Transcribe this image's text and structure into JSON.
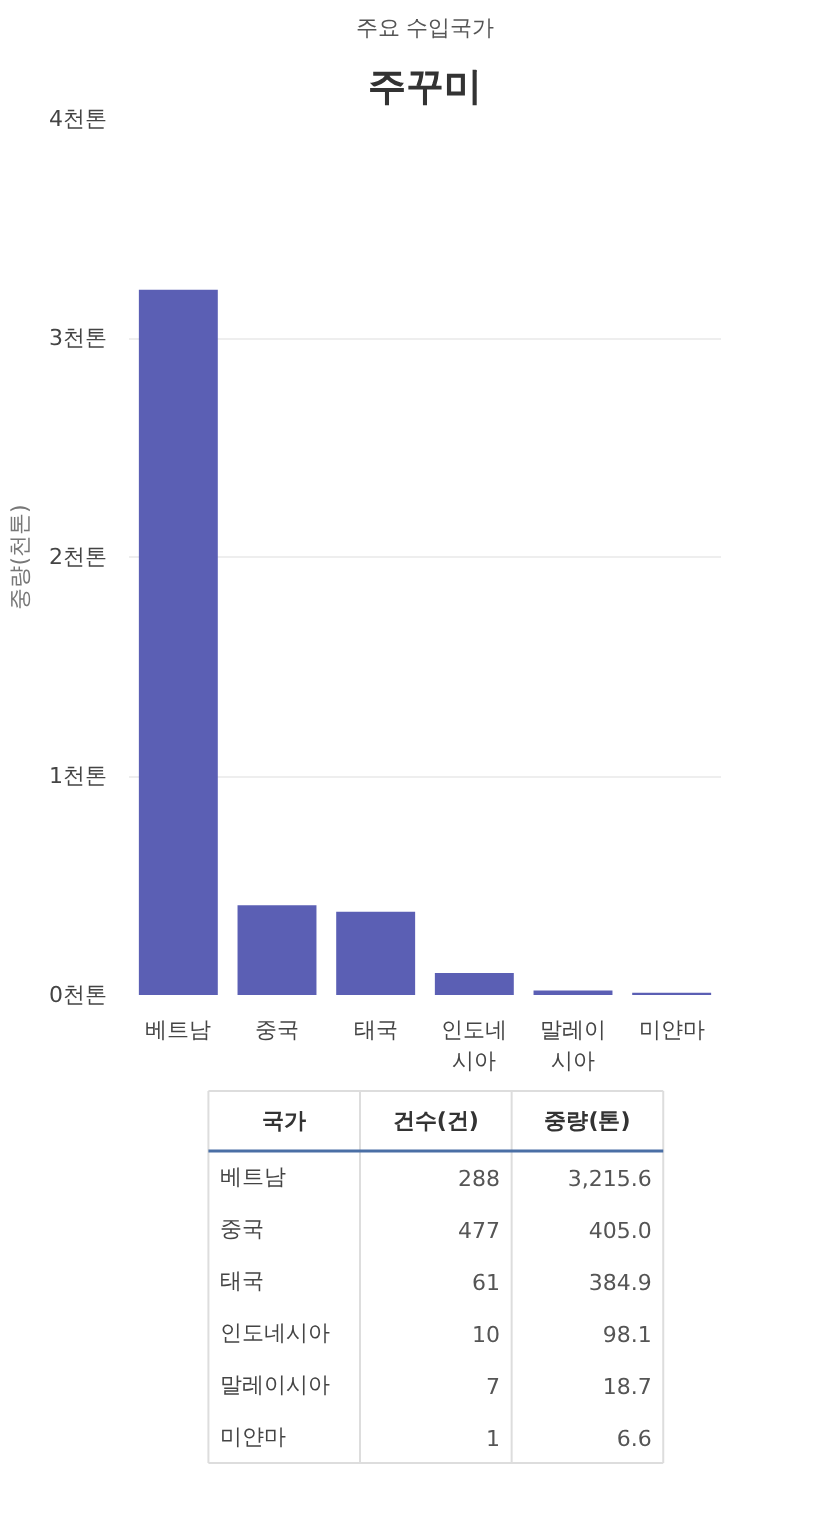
{
  "chart_data": [
    {
      "type": "bar",
      "title": "주꾸미",
      "subtitle": "주요 수입국가",
      "ylabel": "중량(천톤)",
      "categories": [
        "베트남",
        "중국",
        "태국",
        "인도네시아",
        "말레이시아",
        "미얀마"
      ],
      "values": [
        3.22,
        0.41,
        0.38,
        0.1,
        0.02,
        0.01
      ],
      "color": "#5b5fb4",
      "ylim": [
        0,
        4
      ],
      "yticks": [
        {
          "value": 0,
          "label": "0천톤"
        },
        {
          "value": 1,
          "label": "1천톤"
        },
        {
          "value": 2,
          "label": "2천톤"
        },
        {
          "value": 3,
          "label": "3천톤"
        },
        {
          "value": 4,
          "label": "4천톤"
        }
      ],
      "grid": "y"
    },
    {
      "type": "other",
      "xlabel": "국가",
      "data_labels": true,
      "categories": [
        "베트남",
        "중국",
        "태국",
        "인도네시아",
        "말레이시아",
        "미얀마"
      ],
      "series": [
        {
          "name": "건수(건)",
          "values": [
            288,
            477,
            61,
            10,
            7,
            1
          ]
        },
        {
          "name": "중량(톤)",
          "values": [
            3215.6,
            405.0,
            384.9,
            98.1,
            18.7,
            6.6
          ],
          "value_labels": [
            "3,215.6",
            "405.0",
            "384.9",
            "98.1",
            "18.7",
            "6.6"
          ]
        }
      ]
    }
  ]
}
